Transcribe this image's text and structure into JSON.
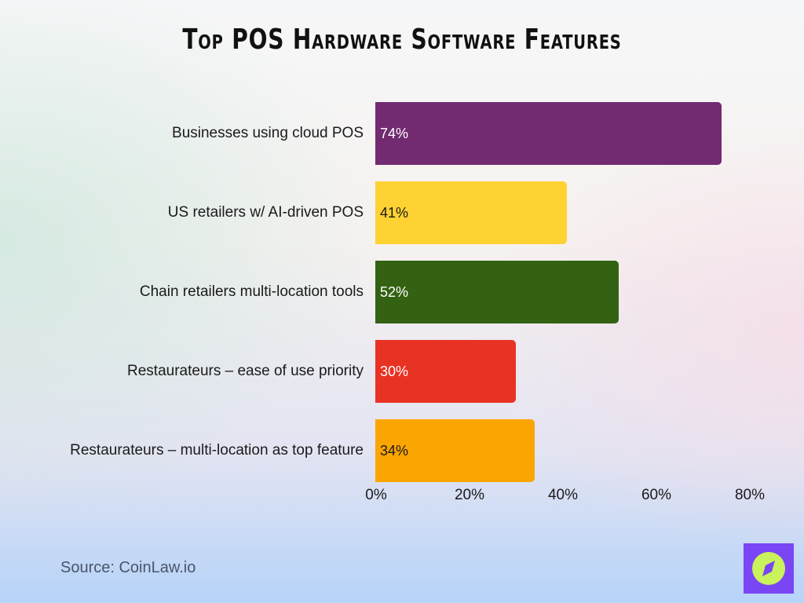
{
  "title": "Top POS Hardware Software Features",
  "source": "Source: CoinLaw.io",
  "logo": {
    "icon": "compass-icon",
    "bg_color": "#7a45f5",
    "fg_color": "#c9f25c"
  },
  "chart_data": {
    "type": "bar",
    "orientation": "horizontal",
    "title": "Top POS Hardware Software Features",
    "xlabel": "",
    "ylabel": "",
    "xlim": [
      0,
      80
    ],
    "x_ticks": [
      "0%",
      "20%",
      "40%",
      "60%",
      "80%"
    ],
    "grid": false,
    "legend": null,
    "categories": [
      "Businesses using cloud POS",
      "US retailers w/ AI-driven POS",
      "Chain retailers multi-location tools",
      "Restaurateurs – ease of use priority",
      "Restaurateurs – multi-location as top feature"
    ],
    "values": [
      74,
      41,
      52,
      30,
      34
    ],
    "value_labels": [
      "74%",
      "41%",
      "52%",
      "30%",
      "34%"
    ],
    "colors": [
      "#722a70",
      "#ffd233",
      "#336312",
      "#e83223",
      "#fba502"
    ],
    "label_colors": [
      "#ffffff",
      "#1a1a1a",
      "#ffffff",
      "#ffffff",
      "#1a1a1a"
    ]
  }
}
